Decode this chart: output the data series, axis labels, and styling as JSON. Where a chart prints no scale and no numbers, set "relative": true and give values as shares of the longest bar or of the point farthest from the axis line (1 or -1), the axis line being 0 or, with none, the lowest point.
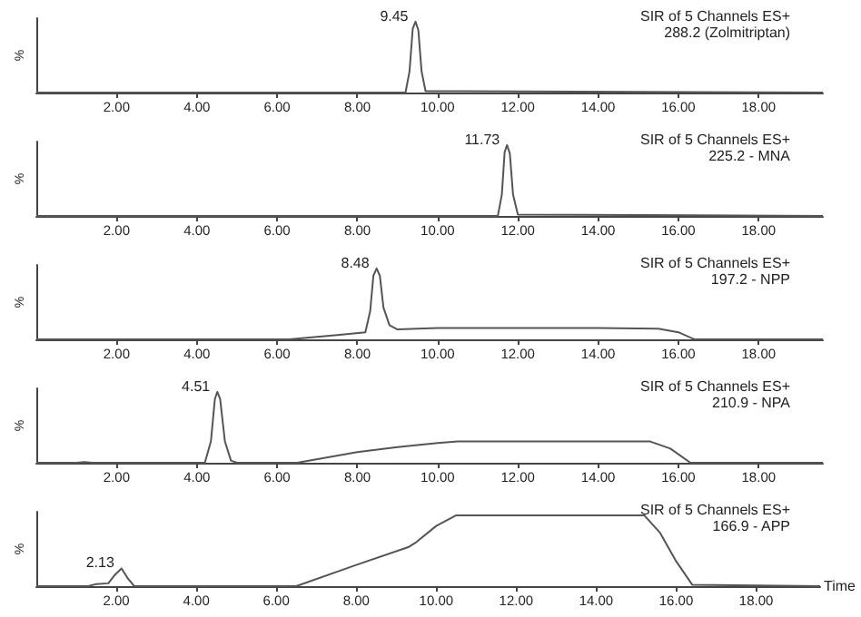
{
  "chart_data": [
    {
      "type": "line",
      "title": "SIR of 5 Channels ES+",
      "subtitle": "288.2 (Zolmitriptan)",
      "ylabel": "%",
      "relative": true,
      "marker": "none",
      "line_style": "solid",
      "color": "#555555",
      "xlim": [
        0,
        19.6
      ],
      "xticks": [
        {
          "value": 2,
          "label": "2.00"
        },
        {
          "value": 4,
          "label": "4.00"
        },
        {
          "value": 6,
          "label": "6.00"
        },
        {
          "value": 8,
          "label": "8.00"
        },
        {
          "value": 10,
          "label": "10.00"
        },
        {
          "value": 12,
          "label": "12.00"
        },
        {
          "value": 14,
          "label": "14.00"
        },
        {
          "value": 16,
          "label": "16.00"
        },
        {
          "value": 18,
          "label": "18.00"
        }
      ],
      "annotations": [
        {
          "text": "9.45",
          "x": 9.45,
          "y": 1
        }
      ],
      "x": [
        0,
        9.2,
        9.3,
        9.38,
        9.45,
        9.52,
        9.6,
        9.7,
        19.6
      ],
      "values": [
        0,
        0,
        0.3,
        0.9,
        1,
        0.88,
        0.3,
        0.02,
        0
      ]
    },
    {
      "type": "line",
      "title": "SIR of 5 Channels ES+",
      "subtitle": "225.2 - MNA",
      "ylabel": "%",
      "relative": true,
      "marker": "none",
      "line_style": "solid",
      "color": "#555555",
      "xlim": [
        0,
        19.6
      ],
      "xticks": [
        {
          "value": 2,
          "label": "2.00"
        },
        {
          "value": 4,
          "label": "4.00"
        },
        {
          "value": 6,
          "label": "6.00"
        },
        {
          "value": 8,
          "label": "8.00"
        },
        {
          "value": 10,
          "label": "10.00"
        },
        {
          "value": 12,
          "label": "12.00"
        },
        {
          "value": 14,
          "label": "14.00"
        },
        {
          "value": 16,
          "label": "16.00"
        },
        {
          "value": 18,
          "label": "18.00"
        }
      ],
      "annotations": [
        {
          "text": "11.73",
          "x": 11.73,
          "y": 1
        }
      ],
      "x": [
        0,
        11.5,
        11.6,
        11.67,
        11.73,
        11.8,
        11.88,
        12.0,
        19.6
      ],
      "values": [
        0,
        0,
        0.3,
        0.9,
        1,
        0.88,
        0.3,
        0.02,
        0
      ]
    },
    {
      "type": "line",
      "title": "SIR of 5 Channels ES+",
      "subtitle": "197.2 - NPP",
      "ylabel": "%",
      "relative": true,
      "marker": "none",
      "line_style": "solid",
      "color": "#555555",
      "xlim": [
        0,
        19.6
      ],
      "xticks": [
        {
          "value": 2,
          "label": "2.00"
        },
        {
          "value": 4,
          "label": "4.00"
        },
        {
          "value": 6,
          "label": "6.00"
        },
        {
          "value": 8,
          "label": "8.00"
        },
        {
          "value": 10,
          "label": "10.00"
        },
        {
          "value": 12,
          "label": "12.00"
        },
        {
          "value": 14,
          "label": "14.00"
        },
        {
          "value": 16,
          "label": "16.00"
        },
        {
          "value": 18,
          "label": "18.00"
        }
      ],
      "annotations": [
        {
          "text": "8.48",
          "x": 8.48,
          "y": 1
        }
      ],
      "x": [
        0,
        1.5,
        6.3,
        7.5,
        8.2,
        8.32,
        8.4,
        8.48,
        8.56,
        8.65,
        8.8,
        9.0,
        10.0,
        12.0,
        14.0,
        15.5,
        16.0,
        16.4,
        19.6
      ],
      "values": [
        0,
        0,
        0,
        0.06,
        0.1,
        0.4,
        0.9,
        1,
        0.9,
        0.45,
        0.2,
        0.14,
        0.16,
        0.16,
        0.16,
        0.15,
        0.1,
        0,
        0
      ]
    },
    {
      "type": "line",
      "title": "SIR of 5 Channels ES+",
      "subtitle": "210.9 - NPA",
      "ylabel": "%",
      "relative": true,
      "marker": "none",
      "line_style": "solid",
      "color": "#555555",
      "xlim": [
        0,
        19.6
      ],
      "xticks": [
        {
          "value": 2,
          "label": "2.00"
        },
        {
          "value": 4,
          "label": "4.00"
        },
        {
          "value": 6,
          "label": "6.00"
        },
        {
          "value": 8,
          "label": "8.00"
        },
        {
          "value": 10,
          "label": "10.00"
        },
        {
          "value": 12,
          "label": "12.00"
        },
        {
          "value": 14,
          "label": "14.00"
        },
        {
          "value": 16,
          "label": "16.00"
        },
        {
          "value": 18,
          "label": "18.00"
        }
      ],
      "annotations": [
        {
          "text": "4.51",
          "x": 4.51,
          "y": 1
        }
      ],
      "x": [
        0,
        1.0,
        1.2,
        1.4,
        4.2,
        4.35,
        4.45,
        4.51,
        4.58,
        4.7,
        4.85,
        5.0,
        6.5,
        8.0,
        9.0,
        10.0,
        10.5,
        12.0,
        15.3,
        15.8,
        16.3,
        19.6
      ],
      "values": [
        0,
        0,
        0.01,
        0,
        0,
        0.3,
        0.9,
        1,
        0.9,
        0.3,
        0.03,
        0,
        0,
        0.15,
        0.22,
        0.28,
        0.3,
        0.3,
        0.3,
        0.2,
        0,
        0
      ]
    },
    {
      "type": "line",
      "title": "SIR of 5 Channels ES+",
      "subtitle": "166.9 - APP",
      "ylabel": "%",
      "xlabel": "Time",
      "relative": true,
      "marker": "none",
      "line_style": "solid",
      "color": "#555555",
      "xlim": [
        0,
        19.6
      ],
      "xticks": [
        {
          "value": 2,
          "label": "2.00"
        },
        {
          "value": 4,
          "label": "4.00"
        },
        {
          "value": 6,
          "label": "6.00"
        },
        {
          "value": 8,
          "label": "8.00"
        },
        {
          "value": 10,
          "label": "10.00"
        },
        {
          "value": 12,
          "label": "12.00"
        },
        {
          "value": 14,
          "label": "14.00"
        },
        {
          "value": 16,
          "label": "16.00"
        },
        {
          "value": 18,
          "label": "18.00"
        }
      ],
      "annotations": [
        {
          "text": "2.13",
          "x": 2.13,
          "y": 0.25
        }
      ],
      "x": [
        0,
        1.3,
        1.5,
        1.8,
        1.95,
        2.13,
        2.3,
        2.45,
        6.5,
        8.0,
        9.3,
        9.5,
        10.0,
        10.5,
        12.0,
        15.2,
        15.6,
        16.0,
        16.4,
        19.6
      ],
      "values": [
        0,
        0,
        0.03,
        0.04,
        0.15,
        0.25,
        0.1,
        0,
        0,
        0.3,
        0.55,
        0.62,
        0.85,
        1,
        1,
        1,
        0.75,
        0.35,
        0.02,
        0
      ]
    }
  ]
}
